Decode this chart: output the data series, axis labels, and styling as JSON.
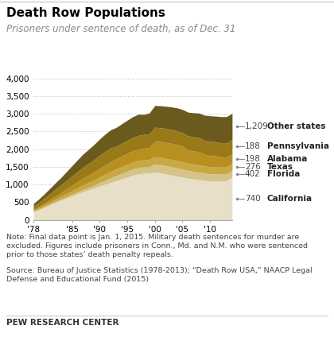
{
  "title": "Death Row Populations",
  "subtitle": "Prisoners under sentence of death, as of Dec. 31",
  "note1": "Note: Final data point is Jan. 1, 2015. Military death sentences for murder are\nexcluded. Figures include prisoners in Conn., Md. and N.M. who were sentenced\nprior to those states’ death penalty repeals.",
  "note2": "Source: Bureau of Justice Statistics (1978-2013); “Death Row USA,” NAACP Legal\nDefense and Educational Fund (2015)",
  "source_label": "PEW RESEARCH CENTER",
  "years": [
    1978,
    1979,
    1980,
    1981,
    1982,
    1983,
    1984,
    1985,
    1986,
    1987,
    1988,
    1989,
    1990,
    1991,
    1992,
    1993,
    1994,
    1995,
    1996,
    1997,
    1998,
    1999,
    2000,
    2001,
    2002,
    2003,
    2004,
    2005,
    2006,
    2007,
    2008,
    2009,
    2010,
    2011,
    2012,
    2013,
    2014
  ],
  "layers": {
    "Other states": [
      230,
      290,
      360,
      430,
      500,
      560,
      620,
      680,
      740,
      800,
      850,
      900,
      960,
      1010,
      1060,
      1110,
      1160,
      1210,
      1270,
      1300,
      1320,
      1330,
      1350,
      1330,
      1300,
      1270,
      1240,
      1210,
      1180,
      1160,
      1140,
      1120,
      1100,
      1100,
      1100,
      1110,
      1209
    ],
    "Pennsylvania": [
      10,
      15,
      18,
      22,
      26,
      30,
      36,
      43,
      50,
      60,
      70,
      80,
      100,
      115,
      130,
      145,
      155,
      165,
      170,
      175,
      178,
      180,
      232,
      232,
      232,
      232,
      232,
      225,
      220,
      215,
      210,
      205,
      200,
      197,
      194,
      190,
      188
    ],
    "Alabama": [
      30,
      38,
      45,
      55,
      65,
      75,
      88,
      100,
      115,
      128,
      138,
      148,
      158,
      168,
      178,
      185,
      190,
      195,
      197,
      199,
      200,
      203,
      205,
      207,
      208,
      208,
      207,
      206,
      205,
      204,
      203,
      202,
      201,
      200,
      199,
      198,
      198
    ],
    "Texas": [
      30,
      40,
      55,
      70,
      90,
      110,
      130,
      155,
      175,
      195,
      210,
      225,
      240,
      255,
      270,
      285,
      300,
      310,
      318,
      325,
      330,
      335,
      440,
      446,
      450,
      453,
      450,
      442,
      374,
      374,
      374,
      330,
      320,
      310,
      290,
      279,
      276
    ],
    "Florida": [
      90,
      115,
      140,
      165,
      190,
      215,
      240,
      265,
      290,
      310,
      330,
      350,
      370,
      388,
      400,
      359,
      362,
      370,
      380,
      389,
      390,
      391,
      392,
      393,
      394,
      393,
      390,
      385,
      397,
      397,
      397,
      397,
      403,
      402,
      402,
      400,
      402
    ],
    "California": [
      70,
      95,
      120,
      150,
      180,
      210,
      250,
      290,
      330,
      370,
      400,
      430,
      460,
      490,
      510,
      530,
      550,
      570,
      583,
      600,
      563,
      584,
      615,
      620,
      628,
      638,
      649,
      655,
      670,
      680,
      697,
      707,
      719,
      724,
      735,
      743,
      740
    ]
  },
  "layer_colors": {
    "Other states": "#e8dfc8",
    "Pennsylvania": "#d4c48a",
    "Alabama": "#c8a842",
    "Texas": "#b89020",
    "Florida": "#9a7a18",
    "California": "#6b5a1e"
  },
  "legend": [
    {
      "label": "California",
      "value": "740",
      "color": "#6b5a1e"
    },
    {
      "label": "Florida",
      "value": "402",
      "color": "#9a7a18"
    },
    {
      "label": "Texas",
      "value": "276",
      "color": "#b89020"
    },
    {
      "label": "Alabama",
      "value": "198",
      "color": "#c8a842"
    },
    {
      "label": "Pennsylvania",
      "value": "188",
      "color": "#d4c48a"
    },
    {
      "label": "Other states",
      "value": "1,209",
      "color": "#e8dfc8"
    }
  ],
  "ylim": [
    0,
    4000
  ],
  "yticks": [
    0,
    500,
    1000,
    1500,
    2000,
    2500,
    3000,
    3500,
    4000
  ],
  "xtick_years": [
    1978,
    1985,
    1990,
    1995,
    2000,
    2005,
    2010
  ],
  "xtick_labels": [
    "'78",
    "'85",
    "'90",
    "'95",
    "'00",
    "'05",
    "'10"
  ],
  "background_color": "#ffffff"
}
